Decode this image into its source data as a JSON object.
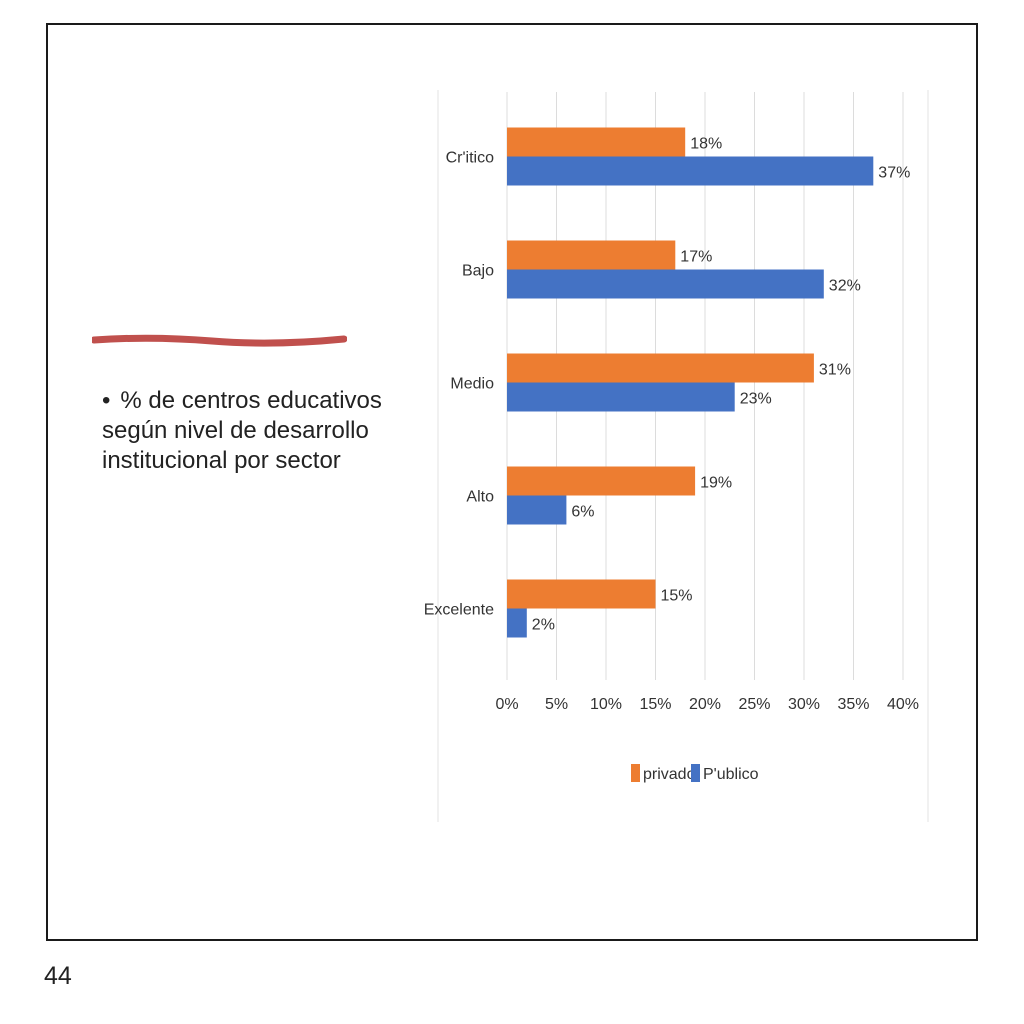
{
  "slide": {
    "bullet": "•",
    "text": "% de centros educativos según nivel de desarrollo institucional por sector",
    "page_number": "44",
    "accent_line_color": "#c0504d"
  },
  "chart_data": {
    "type": "bar",
    "orientation": "horizontal",
    "categories": [
      "Cr'itico",
      "Bajo",
      "Medio",
      "Alto",
      "Excelente"
    ],
    "series": [
      {
        "name": "privado",
        "color": "#ed7d31",
        "values": [
          18,
          17,
          31,
          19,
          15
        ],
        "labels": [
          "18%",
          "17%",
          "31%",
          "19%",
          "15%"
        ]
      },
      {
        "name": "P'ublico",
        "color": "#4472c4",
        "values": [
          37,
          32,
          23,
          6,
          2
        ],
        "labels": [
          "37%",
          "32%",
          "23%",
          "6%",
          "2%"
        ]
      }
    ],
    "xlim": [
      0,
      40
    ],
    "xticks": [
      "0%",
      "5%",
      "10%",
      "15%",
      "20%",
      "25%",
      "30%",
      "35%",
      "40%"
    ],
    "grid": true,
    "legend": "bottom"
  }
}
